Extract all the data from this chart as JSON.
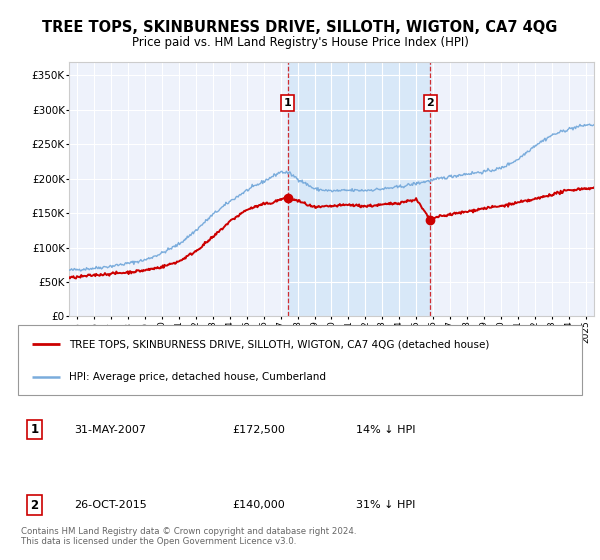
{
  "title": "TREE TOPS, SKINBURNESS DRIVE, SILLOTH, WIGTON, CA7 4QG",
  "subtitle": "Price paid vs. HM Land Registry's House Price Index (HPI)",
  "title_fontsize": 10.5,
  "subtitle_fontsize": 8.5,
  "background_color": "#ffffff",
  "plot_bg_color": "#eef2fb",
  "grid_color": "#ffffff",
  "red_color": "#cc0000",
  "blue_color": "#7aacdc",
  "vline_color": "#cc0000",
  "shade_color": "#d8e8f8",
  "sale1_x": 2007.42,
  "sale1_y": 172500,
  "sale2_x": 2015.83,
  "sale2_y": 140000,
  "ylim": [
    0,
    370000
  ],
  "xlim": [
    1994.5,
    2025.5
  ],
  "yticks": [
    0,
    50000,
    100000,
    150000,
    200000,
    250000,
    300000,
    350000
  ],
  "ytick_labels": [
    "£0",
    "£50K",
    "£100K",
    "£150K",
    "£200K",
    "£250K",
    "£300K",
    "£350K"
  ],
  "xticks": [
    1995,
    1996,
    1997,
    1998,
    1999,
    2000,
    2001,
    2002,
    2003,
    2004,
    2005,
    2006,
    2007,
    2008,
    2009,
    2010,
    2011,
    2012,
    2013,
    2014,
    2015,
    2016,
    2017,
    2018,
    2019,
    2020,
    2021,
    2022,
    2023,
    2024,
    2025
  ],
  "legend_red_label": "TREE TOPS, SKINBURNESS DRIVE, SILLOTH, WIGTON, CA7 4QG (detached house)",
  "legend_blue_label": "HPI: Average price, detached house, Cumberland",
  "note1_date": "31-MAY-2007",
  "note1_price": "£172,500",
  "note1_pct": "14% ↓ HPI",
  "note2_date": "26-OCT-2015",
  "note2_price": "£140,000",
  "note2_pct": "31% ↓ HPI",
  "footer": "Contains HM Land Registry data © Crown copyright and database right 2024.\nThis data is licensed under the Open Government Licence v3.0."
}
